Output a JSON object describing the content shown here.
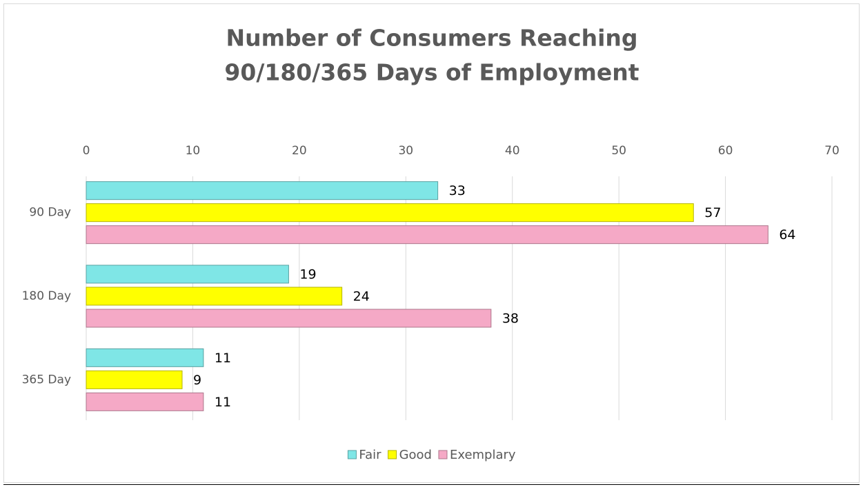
{
  "chart_data": {
    "type": "bar",
    "orientation": "horizontal",
    "title": [
      "Number of Consumers Reaching",
      "90/180/365 Days of Employment"
    ],
    "categories": [
      "90 Day",
      "180 Day",
      "365 Day"
    ],
    "series": [
      {
        "name": "Fair",
        "color": "#7fe6e6",
        "values": [
          33,
          19,
          11
        ]
      },
      {
        "name": "Good",
        "color": "#ffff00",
        "values": [
          57,
          24,
          9
        ]
      },
      {
        "name": "Exemplary",
        "color": "#f5a9c6",
        "values": [
          64,
          38,
          11
        ]
      }
    ],
    "xlim": [
      0,
      70
    ],
    "xticks": [
      0,
      10,
      20,
      30,
      40,
      50,
      60,
      70
    ],
    "grid": true,
    "legend": "bottom"
  }
}
